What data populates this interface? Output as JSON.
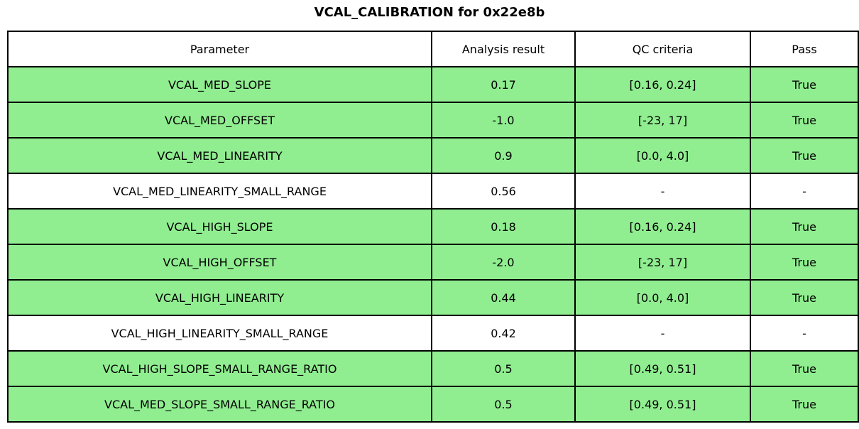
{
  "title": "VCAL_CALIBRATION for 0x22e8b",
  "colors": {
    "pass_row_bg": "#90ee90",
    "neutral_row_bg": "#ffffff",
    "border": "#000000",
    "text": "#000000"
  },
  "chart_data": {
    "type": "table",
    "title": "VCAL_CALIBRATION for 0x22e8b",
    "columns": [
      "Parameter",
      "Analysis result",
      "QC criteria",
      "Pass"
    ],
    "rows": [
      {
        "parameter": "VCAL_MED_SLOPE",
        "analysis_result": "0.17",
        "qc_criteria": "[0.16, 0.24]",
        "pass": "True",
        "highlighted": true
      },
      {
        "parameter": "VCAL_MED_OFFSET",
        "analysis_result": "-1.0",
        "qc_criteria": "[-23, 17]",
        "pass": "True",
        "highlighted": true
      },
      {
        "parameter": "VCAL_MED_LINEARITY",
        "analysis_result": "0.9",
        "qc_criteria": "[0.0, 4.0]",
        "pass": "True",
        "highlighted": true
      },
      {
        "parameter": "VCAL_MED_LINEARITY_SMALL_RANGE",
        "analysis_result": "0.56",
        "qc_criteria": "-",
        "pass": "-",
        "highlighted": false
      },
      {
        "parameter": "VCAL_HIGH_SLOPE",
        "analysis_result": "0.18",
        "qc_criteria": "[0.16, 0.24]",
        "pass": "True",
        "highlighted": true
      },
      {
        "parameter": "VCAL_HIGH_OFFSET",
        "analysis_result": "-2.0",
        "qc_criteria": "[-23, 17]",
        "pass": "True",
        "highlighted": true
      },
      {
        "parameter": "VCAL_HIGH_LINEARITY",
        "analysis_result": "0.44",
        "qc_criteria": "[0.0, 4.0]",
        "pass": "True",
        "highlighted": true
      },
      {
        "parameter": "VCAL_HIGH_LINEARITY_SMALL_RANGE",
        "analysis_result": "0.42",
        "qc_criteria": "-",
        "pass": "-",
        "highlighted": false
      },
      {
        "parameter": "VCAL_HIGH_SLOPE_SMALL_RANGE_RATIO",
        "analysis_result": "0.5",
        "qc_criteria": "[0.49, 0.51]",
        "pass": "True",
        "highlighted": true
      },
      {
        "parameter": "VCAL_MED_SLOPE_SMALL_RANGE_RATIO",
        "analysis_result": "0.5",
        "qc_criteria": "[0.49, 0.51]",
        "pass": "True",
        "highlighted": true
      }
    ]
  }
}
